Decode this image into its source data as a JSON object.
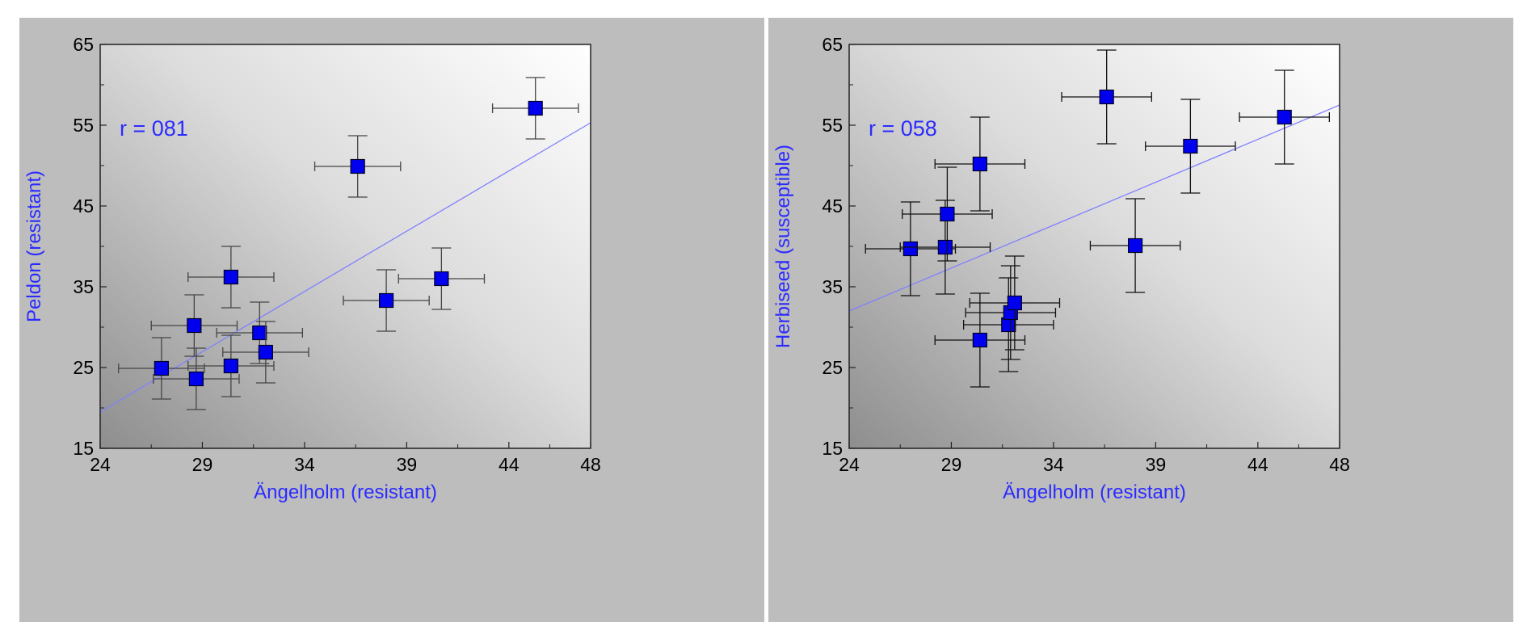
{
  "chart_data": [
    {
      "type": "scatter",
      "title": "",
      "xlabel": "Ängelholm (resistant)",
      "ylabel": "Peldon (resistant)",
      "annotation": "r = 081",
      "xlim": [
        24,
        48
      ],
      "ylim": [
        15,
        65
      ],
      "xticks": [
        24,
        29,
        34,
        39,
        44,
        48
      ],
      "yticks": [
        15,
        25,
        35,
        45,
        55,
        65
      ],
      "trendline": {
        "x": [
          24,
          48
        ],
        "y": [
          19.5,
          55.3
        ]
      },
      "colors": {
        "marker": "#0000ee",
        "trendline": "#8080ff",
        "errorbar": "#444444"
      },
      "points": [
        {
          "x": 27.0,
          "y": 24.9,
          "xerr": 2.1,
          "yerr": 3.8
        },
        {
          "x": 28.7,
          "y": 23.6,
          "xerr": 2.1,
          "yerr": 3.8
        },
        {
          "x": 28.6,
          "y": 30.2,
          "xerr": 2.1,
          "yerr": 3.8
        },
        {
          "x": 30.4,
          "y": 36.2,
          "xerr": 2.1,
          "yerr": 3.8
        },
        {
          "x": 30.4,
          "y": 25.2,
          "xerr": 2.1,
          "yerr": 3.8
        },
        {
          "x": 31.8,
          "y": 29.3,
          "xerr": 2.1,
          "yerr": 3.8
        },
        {
          "x": 32.1,
          "y": 26.9,
          "xerr": 2.1,
          "yerr": 3.8
        },
        {
          "x": 38.0,
          "y": 33.3,
          "xerr": 2.1,
          "yerr": 3.8
        },
        {
          "x": 36.6,
          "y": 49.9,
          "xerr": 2.1,
          "yerr": 3.8
        },
        {
          "x": 40.7,
          "y": 36.0,
          "xerr": 2.1,
          "yerr": 3.8
        },
        {
          "x": 45.3,
          "y": 57.1,
          "xerr": 2.1,
          "yerr": 3.8
        }
      ]
    },
    {
      "type": "scatter",
      "title": "",
      "xlabel": "Ängelholm (resistant)",
      "ylabel": "Herbiseed (susceptible)",
      "annotation": "r = 058",
      "xlim": [
        24,
        48
      ],
      "ylim": [
        15,
        65
      ],
      "xticks": [
        24,
        29,
        34,
        39,
        44,
        48
      ],
      "yticks": [
        15,
        25,
        35,
        45,
        55,
        65
      ],
      "trendline": {
        "x": [
          24,
          48
        ],
        "y": [
          32.0,
          57.5
        ]
      },
      "colors": {
        "marker": "#0000ee",
        "trendline": "#8080ff",
        "errorbar": "#111111"
      },
      "points": [
        {
          "x": 27.0,
          "y": 39.7,
          "xerr": 2.2,
          "yerr": 5.8
        },
        {
          "x": 28.7,
          "y": 39.9,
          "xerr": 2.2,
          "yerr": 5.8
        },
        {
          "x": 28.8,
          "y": 44.0,
          "xerr": 2.2,
          "yerr": 5.8
        },
        {
          "x": 30.4,
          "y": 50.2,
          "xerr": 2.2,
          "yerr": 5.8
        },
        {
          "x": 30.4,
          "y": 28.4,
          "xerr": 2.2,
          "yerr": 5.8
        },
        {
          "x": 31.8,
          "y": 30.3,
          "xerr": 2.2,
          "yerr": 5.8
        },
        {
          "x": 31.9,
          "y": 31.8,
          "xerr": 2.2,
          "yerr": 5.8
        },
        {
          "x": 32.1,
          "y": 33.0,
          "xerr": 2.2,
          "yerr": 5.8
        },
        {
          "x": 36.6,
          "y": 58.5,
          "xerr": 2.2,
          "yerr": 5.8
        },
        {
          "x": 38.0,
          "y": 40.1,
          "xerr": 2.2,
          "yerr": 5.8
        },
        {
          "x": 40.7,
          "y": 52.4,
          "xerr": 2.2,
          "yerr": 5.8
        },
        {
          "x": 45.3,
          "y": 56.0,
          "xerr": 2.2,
          "yerr": 5.8
        }
      ]
    }
  ]
}
